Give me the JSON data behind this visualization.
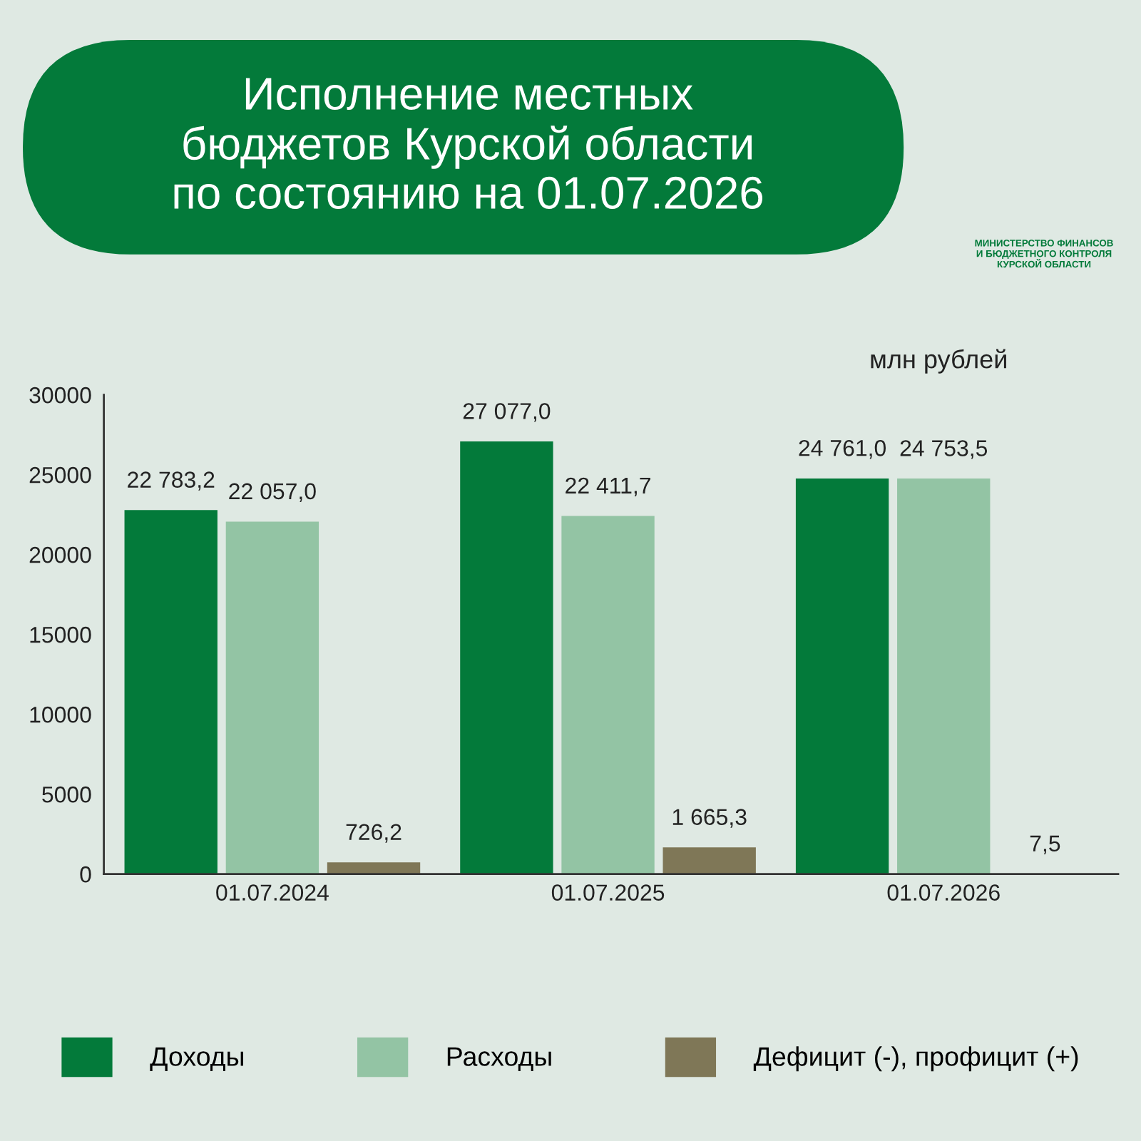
{
  "chart_data": {
    "type": "bar",
    "title": "Исполнение местных\nбюджетов Курской области\nпо состоянию на 01.07.2026",
    "ylabel": "млн рублей",
    "annotations": [
      "МИНИСТЕРСТВО ФИНАНСОВ\nИ БЮДЖЕТНОГО КОНТРОЛЯ\nКУРСКОЙ ОБЛАСТИ"
    ],
    "categories": [
      "01.07.2024",
      "01.07.2025",
      "01.07.2026"
    ],
    "series": [
      {
        "name": "Доходы",
        "color": "#037a3a",
        "values": [
          22783.2,
          27077.0,
          24761.0
        ],
        "value_labels": [
          "22 783,2",
          "27 077,0",
          "24 761,0"
        ]
      },
      {
        "name": "Расходы",
        "color": "#93c4a4",
        "values": [
          22057.0,
          22411.7,
          24753.5
        ],
        "value_labels": [
          "22 057,0",
          "22 411,7",
          "24 753,5"
        ]
      },
      {
        "name": "Дефицит (-), профицит (+)",
        "color": "#7f7757",
        "values": [
          726.2,
          1665.3,
          7.5
        ],
        "value_labels": [
          "726,2",
          "1 665,3",
          "7,5"
        ]
      }
    ],
    "ylim": [
      0,
      30000
    ],
    "yticks": [
      0,
      5000,
      10000,
      15000,
      20000,
      25000,
      30000
    ],
    "legend": "bottom"
  }
}
